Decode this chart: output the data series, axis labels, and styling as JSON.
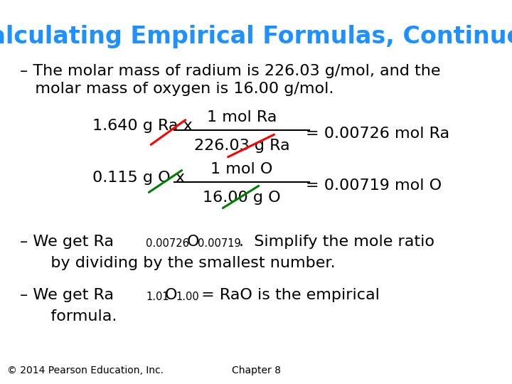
{
  "title": "Calculating Empirical Formulas, Continued",
  "title_color": "#1E90FF",
  "bg_color": "#FFFFFF",
  "title_fontsize": 24,
  "body_fontsize": 16,
  "sub_fontsize": 10.5,
  "footer_fontsize": 10,
  "footer_left": "© 2014 Pearson Education, Inc.",
  "footer_right": "Chapter 8",
  "bullet1_line1": "– The molar mass of radium is 226.03 g/mol, and the",
  "bullet1_line2": "   molar mass of oxygen is 16.00 g/mol.",
  "frac1_left": "1.640 g Ra x",
  "frac1_num": "1 mol Ra",
  "frac1_den": "226.03 g Ra",
  "frac1_res": "= 0.00726 mol Ra",
  "frac2_left": "0.115 g O x",
  "frac2_num": "1 mol O",
  "frac2_den": "16.00 g O",
  "frac2_res": "= 0.00719 mol O",
  "b2_pre": "– We get Ra",
  "b2_sub1": "0.00726",
  "b2_mid": "O",
  "b2_sub2": "0.00719",
  "b2_dot": ".",
  "b2_rest": "  Simplify the mole ratio",
  "b2_line2": "   by dividing by the smallest number.",
  "b3_pre": "– We get Ra",
  "b3_sub1": "1.01",
  "b3_mid": "O",
  "b3_sub2": "1.00",
  "b3_rest": " = RaO is the empirical",
  "b3_line2": "   formula."
}
